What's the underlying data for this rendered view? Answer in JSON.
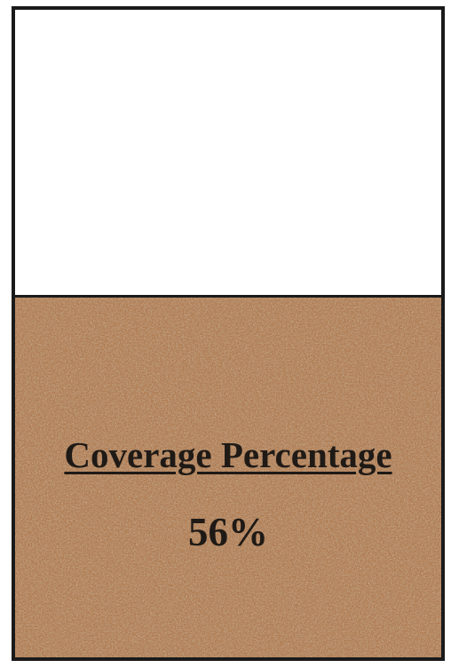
{
  "coverage": {
    "label": "Coverage Percentage",
    "value_text": "56%",
    "fraction": 0.56
  },
  "colors": {
    "border": "#1a1a1a",
    "empty": "#ffffff",
    "fill_base": "#b07a4f",
    "text": "#1f1a16"
  },
  "fill_texture": "cork-icon"
}
